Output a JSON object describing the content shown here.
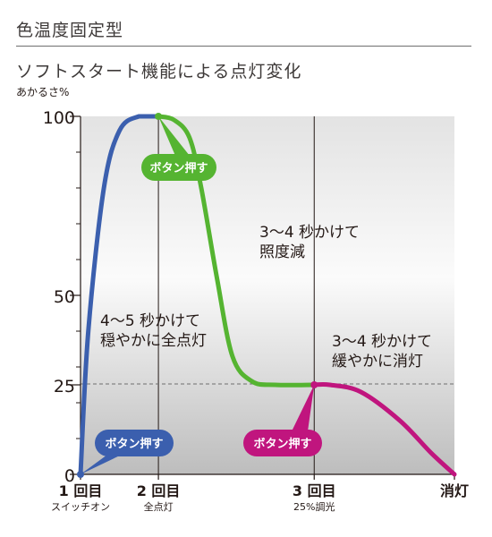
{
  "header": {
    "title": "色温度固定型"
  },
  "chart_data": {
    "type": "line",
    "title": "ソフトスタート機能による点灯変化",
    "ylabel": "あかるさ%",
    "ylim": [
      0,
      100
    ],
    "y_ticks": [
      "0",
      "25",
      "50",
      "100"
    ],
    "x_ticks": [
      {
        "main": "1 回目",
        "sub": "スイッチオン"
      },
      {
        "main": "2 回目",
        "sub": "全点灯"
      },
      {
        "main": "3 回目",
        "sub": "25%調光"
      },
      {
        "main": "消灯",
        "sub": ""
      }
    ],
    "grid": false,
    "series": [
      {
        "color": "#3b5fae",
        "points": [
          [
            0,
            0
          ],
          [
            0.1,
            40
          ],
          [
            0.3,
            80
          ],
          [
            0.5,
            96
          ],
          [
            0.75,
            100
          ],
          [
            1,
            100
          ]
        ]
      },
      {
        "color": "#55b431",
        "points": [
          [
            1,
            100
          ],
          [
            1.2,
            99
          ],
          [
            1.4,
            94
          ],
          [
            1.55,
            80
          ],
          [
            1.75,
            55
          ],
          [
            1.95,
            33
          ],
          [
            2.2,
            26
          ],
          [
            2.5,
            25
          ],
          [
            3,
            25
          ]
        ]
      },
      {
        "color": "#c0157e",
        "points": [
          [
            3,
            25
          ],
          [
            3.2,
            25
          ],
          [
            3.6,
            23
          ],
          [
            4.1,
            15
          ],
          [
            4.5,
            6
          ],
          [
            4.8,
            0
          ]
        ]
      }
    ],
    "annotations": [
      {
        "text": "4〜5 秒かけて\n穏やかに全点灯"
      },
      {
        "text": "3〜4 秒かけて\n照度減"
      },
      {
        "text": "3〜4 秒かけて\n緩やかに消灯"
      }
    ],
    "callouts": [
      {
        "label": "ボタン押す",
        "color": "#3b5fae"
      },
      {
        "label": "ボタン押す",
        "color": "#55b431"
      },
      {
        "label": "ボタン押す",
        "color": "#c0157e"
      }
    ]
  }
}
